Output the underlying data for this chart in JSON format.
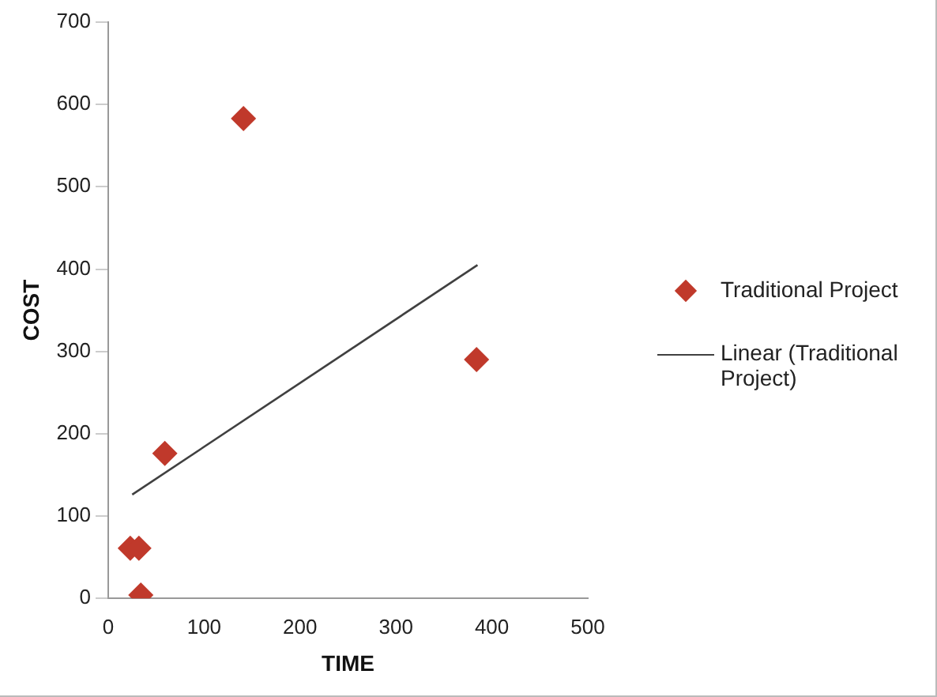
{
  "chart_data": {
    "type": "scatter",
    "xlabel": "TIME",
    "ylabel": "COST",
    "xlim": [
      0,
      500
    ],
    "xticks": [
      0,
      100,
      200,
      300,
      400,
      500
    ],
    "ylim": [
      0,
      700
    ],
    "yticks": [
      0,
      100,
      200,
      300,
      400,
      500,
      600,
      700
    ],
    "grid": false,
    "legend": "right",
    "marker": "diamond",
    "series": [
      {
        "name": "Traditional Project",
        "color": "#c0392b",
        "x": [
          141,
          384,
          59,
          23,
          32,
          34
        ],
        "values": [
          583,
          290,
          176,
          61,
          61,
          4
        ]
      },
      {
        "name": "Linear (Traditional Project)",
        "color": "#404040",
        "type": "line",
        "marker": "none",
        "line_style": "solid",
        "x": [
          25,
          385
        ],
        "values": [
          126,
          405
        ]
      }
    ]
  }
}
